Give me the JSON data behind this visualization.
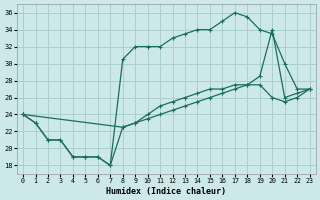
{
  "xlabel": "Humidex (Indice chaleur)",
  "bg_color": "#cce8e8",
  "grid_color": "#aacece",
  "line_color": "#1a6e5e",
  "xlim": [
    -0.5,
    23.5
  ],
  "ylim": [
    17,
    37
  ],
  "xticks": [
    0,
    1,
    2,
    3,
    4,
    5,
    6,
    7,
    8,
    9,
    10,
    11,
    12,
    13,
    14,
    15,
    16,
    17,
    18,
    19,
    20,
    21,
    22,
    23
  ],
  "yticks": [
    18,
    20,
    22,
    24,
    26,
    28,
    30,
    32,
    34,
    36
  ],
  "line1_x": [
    0,
    1,
    2,
    3,
    4,
    5,
    6,
    7,
    8,
    9,
    10,
    11,
    12,
    13,
    14,
    15,
    16,
    17,
    18,
    19,
    20,
    21,
    22,
    23
  ],
  "line1_y": [
    24,
    23,
    21,
    21,
    19,
    19,
    19,
    18,
    30.5,
    32,
    32,
    32,
    33,
    33.5,
    34,
    34,
    35,
    36,
    35.5,
    34,
    33.5,
    30,
    27,
    27
  ],
  "line2_x": [
    0,
    1,
    2,
    3,
    4,
    5,
    6,
    7,
    8,
    9,
    10,
    11,
    12,
    13,
    14,
    15,
    16,
    17,
    18,
    19,
    20,
    21,
    22,
    23
  ],
  "line2_y": [
    24,
    23,
    21,
    21,
    19,
    19,
    19,
    18,
    22.5,
    23,
    24,
    25,
    25.5,
    26,
    26.5,
    27,
    27,
    27.5,
    27.5,
    28.5,
    34,
    26,
    26.5,
    27
  ],
  "line3_x": [
    0,
    8,
    9,
    10,
    11,
    12,
    13,
    14,
    15,
    16,
    17,
    18,
    19,
    20,
    21,
    22,
    23
  ],
  "line3_y": [
    24,
    22.5,
    23,
    23.5,
    24,
    24.5,
    25,
    25.5,
    26,
    26.5,
    27,
    27.5,
    27.5,
    26,
    25.5,
    26,
    27
  ]
}
